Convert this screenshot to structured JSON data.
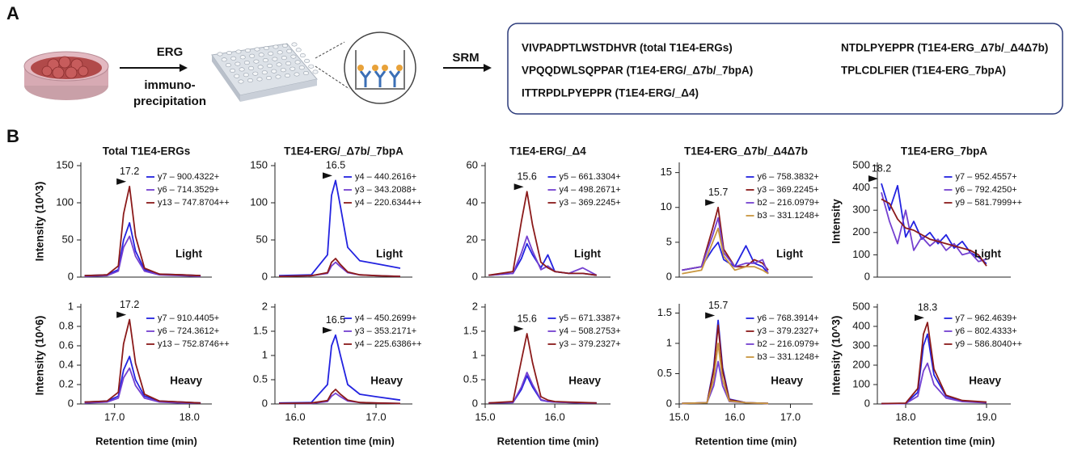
{
  "panel_a": {
    "label": "A",
    "step1": "ERG",
    "step1_sub": [
      "immuno-",
      "precipitation"
    ],
    "step2": "SRM",
    "peptides": [
      "VIVPADPTLWSTDHVR (total T1E4-ERGs)",
      "VPQQDWLSQPPAR (T1E4-ERG/_Δ7b/_7bpA)",
      "ITTRPDLPYEPPR (T1E4-ERG/_Δ4)",
      "NTDLPYEPPR (T1E4-ERG_Δ7b/_Δ4Δ7b)",
      "TPLCDLFIER (T1E4-ERG_7bpA)"
    ]
  },
  "panel_b_label": "B",
  "chart_data": [
    {
      "type": "line",
      "title": "Total T1E4-ERGs",
      "ylabel": "Intensity (10^3)",
      "condition": "Light",
      "peak_rt": 17.2,
      "peak_color": "#8b1a1a",
      "xlim": [
        16.55,
        18.3
      ],
      "ylim": [
        0,
        150
      ],
      "yticks": [
        0,
        50,
        100,
        150
      ],
      "x": [
        16.6,
        16.9,
        17.05,
        17.12,
        17.2,
        17.28,
        17.4,
        17.6,
        17.9,
        18.15
      ],
      "series": [
        {
          "name": "y7 – 900.4322+",
          "color": "#2323e0",
          "values": [
            2,
            3,
            10,
            50,
            73,
            35,
            10,
            4,
            3,
            2
          ]
        },
        {
          "name": "y6 – 714.3529+",
          "color": "#7440d0",
          "values": [
            1,
            2,
            8,
            40,
            55,
            28,
            8,
            3,
            2,
            1
          ]
        },
        {
          "name": "y13 – 747.8704++",
          "color": "#8b1a1a",
          "values": [
            2,
            3,
            15,
            85,
            122,
            55,
            12,
            4,
            3,
            2
          ]
        }
      ]
    },
    {
      "type": "line",
      "ylabel": "Intensity (10^6)",
      "xlabel": "Retention time (min)",
      "condition": "Heavy",
      "peak_rt": 17.2,
      "peak_color": "#8b1a1a",
      "xlim": [
        16.55,
        18.3
      ],
      "xticks": [
        {
          "value": 17,
          "label": "17.0"
        },
        {
          "value": 18,
          "label": "18.0"
        }
      ],
      "ylim": [
        0,
        1
      ],
      "yticks": [
        0,
        0.2,
        0.4,
        0.6,
        0.8,
        1
      ],
      "x": [
        16.6,
        16.9,
        17.05,
        17.12,
        17.2,
        17.28,
        17.4,
        17.6,
        17.9,
        18.15
      ],
      "series": [
        {
          "name": "y7 – 910.4405+",
          "color": "#2323e0",
          "values": [
            0.02,
            0.03,
            0.08,
            0.35,
            0.49,
            0.25,
            0.08,
            0.03,
            0.02,
            0.01
          ]
        },
        {
          "name": "y6 – 724.3612+",
          "color": "#7440d0",
          "values": [
            0.01,
            0.02,
            0.06,
            0.27,
            0.37,
            0.19,
            0.06,
            0.02,
            0.01,
            0.01
          ]
        },
        {
          "name": "y13 – 752.8746++",
          "color": "#8b1a1a",
          "values": [
            0.02,
            0.03,
            0.12,
            0.62,
            0.87,
            0.42,
            0.1,
            0.03,
            0.02,
            0.01
          ]
        }
      ]
    },
    {
      "type": "line",
      "title": "T1E4-ERG/_Δ7b/_7bpA",
      "condition": "Light",
      "peak_rt": 16.5,
      "peak_color": "#2323e0",
      "xlim": [
        15.75,
        17.45
      ],
      "ylim": [
        0,
        150
      ],
      "yticks": [
        0,
        50,
        100,
        150
      ],
      "x": [
        15.8,
        16.2,
        16.4,
        16.45,
        16.5,
        16.56,
        16.65,
        16.8,
        17.0,
        17.3
      ],
      "series": [
        {
          "name": "y4 – 440.2616+",
          "color": "#2323e0",
          "values": [
            2,
            3,
            30,
            110,
            130,
            95,
            40,
            22,
            18,
            12
          ]
        },
        {
          "name": "y3 – 343.2088+",
          "color": "#7440d0",
          "values": [
            1,
            2,
            5,
            15,
            20,
            14,
            6,
            3,
            2,
            1
          ]
        },
        {
          "name": "y4 – 220.6344++",
          "color": "#8b1a1a",
          "values": [
            1,
            2,
            6,
            20,
            25,
            17,
            7,
            3,
            2,
            1
          ]
        }
      ]
    },
    {
      "type": "line",
      "xlabel": "Retention time (min)",
      "condition": "Heavy",
      "peak_rt": 16.5,
      "peak_color": "#2323e0",
      "xlim": [
        15.75,
        17.45
      ],
      "xticks": [
        {
          "value": 16,
          "label": "16.0"
        },
        {
          "value": 17,
          "label": "17.0"
        }
      ],
      "ylim": [
        0,
        2
      ],
      "yticks": [
        0,
        0.5,
        1,
        1.5,
        2
      ],
      "x": [
        15.8,
        16.2,
        16.4,
        16.45,
        16.5,
        16.56,
        16.65,
        16.8,
        17.0,
        17.3
      ],
      "series": [
        {
          "name": "y4 – 450.2699+",
          "color": "#2323e0",
          "values": [
            0.02,
            0.03,
            0.4,
            1.2,
            1.42,
            1.0,
            0.4,
            0.2,
            0.15,
            0.08
          ]
        },
        {
          "name": "y3 – 353.2171+",
          "color": "#7440d0",
          "values": [
            0.01,
            0.01,
            0.05,
            0.16,
            0.22,
            0.15,
            0.06,
            0.03,
            0.02,
            0.01
          ]
        },
        {
          "name": "y4 – 225.6386++",
          "color": "#8b1a1a",
          "values": [
            0.01,
            0.02,
            0.07,
            0.22,
            0.3,
            0.2,
            0.08,
            0.03,
            0.02,
            0.01
          ]
        }
      ]
    },
    {
      "type": "line",
      "title": "T1E4-ERG/_Δ4",
      "condition": "Light",
      "peak_rt": 15.6,
      "peak_color": "#8b1a1a",
      "xlim": [
        15.0,
        16.8
      ],
      "ylim": [
        0,
        60
      ],
      "yticks": [
        0,
        20,
        40,
        60
      ],
      "x": [
        15.05,
        15.4,
        15.52,
        15.6,
        15.68,
        15.8,
        15.9,
        16.0,
        16.2,
        16.4,
        16.6
      ],
      "series": [
        {
          "name": "y5 – 661.3304+",
          "color": "#2323e0",
          "values": [
            1,
            2,
            10,
            18,
            12,
            5,
            12,
            3,
            2,
            2,
            1
          ]
        },
        {
          "name": "y4 – 498.2671+",
          "color": "#7440d0",
          "values": [
            1,
            2,
            13,
            22,
            14,
            4,
            6,
            3,
            2,
            5,
            1
          ]
        },
        {
          "name": "y3 – 369.2245+",
          "color": "#8b1a1a",
          "values": [
            1,
            3,
            30,
            46,
            28,
            8,
            5,
            3,
            2,
            2,
            1
          ]
        }
      ]
    },
    {
      "type": "line",
      "xlabel": "Retention time (min)",
      "condition": "Heavy",
      "peak_rt": 15.6,
      "peak_color": "#8b1a1a",
      "xlim": [
        15.0,
        16.8
      ],
      "xticks": [
        {
          "value": 15,
          "label": "15.0"
        },
        {
          "value": 16,
          "label": "16.0"
        }
      ],
      "ylim": [
        0,
        2
      ],
      "yticks": [
        0,
        0.5,
        1,
        1.5,
        2
      ],
      "x": [
        15.05,
        15.4,
        15.52,
        15.6,
        15.68,
        15.8,
        15.9,
        16.0,
        16.2,
        16.4,
        16.6
      ],
      "series": [
        {
          "name": "y5 – 671.3387+",
          "color": "#2323e0",
          "values": [
            0.02,
            0.03,
            0.3,
            0.58,
            0.35,
            0.08,
            0.05,
            0.04,
            0.03,
            0.02,
            0.02
          ]
        },
        {
          "name": "y4 – 508.2753+",
          "color": "#7440d0",
          "values": [
            0.02,
            0.03,
            0.35,
            0.65,
            0.4,
            0.09,
            0.05,
            0.04,
            0.03,
            0.02,
            0.02
          ]
        },
        {
          "name": "y3 – 379.2327+",
          "color": "#8b1a1a",
          "values": [
            0.02,
            0.05,
            0.9,
            1.45,
            0.85,
            0.15,
            0.08,
            0.05,
            0.04,
            0.03,
            0.02
          ]
        }
      ]
    },
    {
      "type": "line",
      "title": "T1E4-ERG_Δ7b/_Δ4Δ7b",
      "condition": "Light",
      "peak_rt": 15.7,
      "peak_color": "#8b1a1a",
      "xlim": [
        15.0,
        17.4
      ],
      "ylim": [
        0,
        16
      ],
      "yticks": [
        0,
        5,
        10,
        15
      ],
      "x": [
        15.05,
        15.4,
        15.6,
        15.7,
        15.8,
        16.0,
        16.2,
        16.35,
        16.5,
        16.6
      ],
      "series": [
        {
          "name": "y6 – 758.3832+",
          "color": "#2323e0",
          "values": [
            1,
            1.5,
            4,
            5,
            2.5,
            1.5,
            4.5,
            2,
            1.5,
            0.5
          ]
        },
        {
          "name": "y3 – 369.2245+",
          "color": "#8b1a1a",
          "values": [
            1,
            1.5,
            7,
            10,
            4,
            1.5,
            1.5,
            2.5,
            2,
            1
          ]
        },
        {
          "name": "b2 – 216.0979+",
          "color": "#7440d0",
          "values": [
            1,
            1.5,
            6,
            8.5,
            3.5,
            1.5,
            2,
            2,
            2.5,
            0.5
          ]
        },
        {
          "name": "b3 – 331.1248+",
          "color": "#c8963e",
          "values": [
            0.5,
            1,
            5,
            7,
            3,
            1,
            1.5,
            1.5,
            1,
            0.5
          ]
        }
      ]
    },
    {
      "type": "line",
      "xlabel": "Retention time (min)",
      "condition": "Heavy",
      "peak_rt": 15.7,
      "peak_color": "#8b1a1a",
      "xlim": [
        15.0,
        17.4
      ],
      "xticks": [
        {
          "value": 15,
          "label": "15.0"
        },
        {
          "value": 16,
          "label": "16.0"
        },
        {
          "value": 17,
          "label": "17.0"
        }
      ],
      "ylim": [
        0,
        1.6
      ],
      "yticks": [
        0,
        0.5,
        1,
        1.5
      ],
      "x": [
        15.05,
        15.5,
        15.62,
        15.7,
        15.78,
        15.9,
        16.2,
        16.6
      ],
      "series": [
        {
          "name": "y6 – 768.3914+",
          "color": "#2323e0",
          "values": [
            0.01,
            0.02,
            0.6,
            1.38,
            0.6,
            0.08,
            0.02,
            0.01
          ]
        },
        {
          "name": "y3 – 379.2327+",
          "color": "#8b1a1a",
          "values": [
            0.01,
            0.02,
            0.55,
            1.3,
            0.55,
            0.07,
            0.02,
            0.01
          ]
        },
        {
          "name": "b2 – 216.0979+",
          "color": "#7440d0",
          "values": [
            0.01,
            0.02,
            0.3,
            0.7,
            0.3,
            0.04,
            0.02,
            0.01
          ]
        },
        {
          "name": "b3 – 331.1248+",
          "color": "#c8963e",
          "values": [
            0.01,
            0.02,
            0.4,
            1.0,
            0.4,
            0.05,
            0.02,
            0.01
          ]
        }
      ]
    },
    {
      "type": "line",
      "title": "T1E4-ERG_7bpA",
      "ylabel": "Intensity",
      "condition": "Light",
      "peak_rt": 18.2,
      "peak_color": "#9040d8",
      "xlim": [
        17.65,
        19.3
      ],
      "ylim": [
        0,
        500
      ],
      "yticks": [
        0,
        100,
        200,
        300,
        400,
        500
      ],
      "x": [
        17.7,
        17.8,
        17.9,
        18.0,
        18.1,
        18.2,
        18.3,
        18.4,
        18.5,
        18.6,
        18.7,
        18.8,
        18.9,
        19.0
      ],
      "series": [
        {
          "name": "y7 – 952.4557+",
          "color": "#2323e0",
          "values": [
            420,
            300,
            410,
            180,
            250,
            170,
            200,
            150,
            190,
            130,
            160,
            110,
            90,
            60
          ]
        },
        {
          "name": "y6 – 792.4250+",
          "color": "#7440d0",
          "values": [
            380,
            250,
            150,
            300,
            120,
            180,
            140,
            170,
            120,
            150,
            100,
            110,
            70,
            80
          ]
        },
        {
          "name": "y9 – 581.7999++",
          "color": "#8b1a1a",
          "values": [
            350,
            330,
            260,
            220,
            210,
            190,
            170,
            160,
            150,
            140,
            130,
            120,
            100,
            50
          ]
        }
      ]
    },
    {
      "type": "line",
      "ylabel": "Intensity (10^3)",
      "xlabel": "Retention time (min)",
      "condition": "Heavy",
      "peak_rt": 18.3,
      "peak_color": "#8b1a1a",
      "xlim": [
        17.65,
        19.3
      ],
      "xticks": [
        {
          "value": 18,
          "label": "18.0"
        },
        {
          "value": 19,
          "label": "19.0"
        }
      ],
      "ylim": [
        0,
        500
      ],
      "yticks": [
        0,
        100,
        200,
        300,
        400,
        500
      ],
      "x": [
        17.7,
        18.0,
        18.15,
        18.22,
        18.27,
        18.35,
        18.5,
        18.7,
        19.0
      ],
      "series": [
        {
          "name": "y7 – 962.4639+",
          "color": "#2323e0",
          "values": [
            2,
            3,
            60,
            300,
            360,
            150,
            40,
            15,
            8
          ]
        },
        {
          "name": "y6 – 802.4333+",
          "color": "#7440d0",
          "values": [
            1,
            2,
            40,
            170,
            210,
            100,
            30,
            12,
            6
          ]
        },
        {
          "name": "y9 – 586.8040++",
          "color": "#8b1a1a",
          "values": [
            2,
            4,
            80,
            360,
            420,
            180,
            45,
            18,
            10
          ]
        }
      ]
    }
  ]
}
